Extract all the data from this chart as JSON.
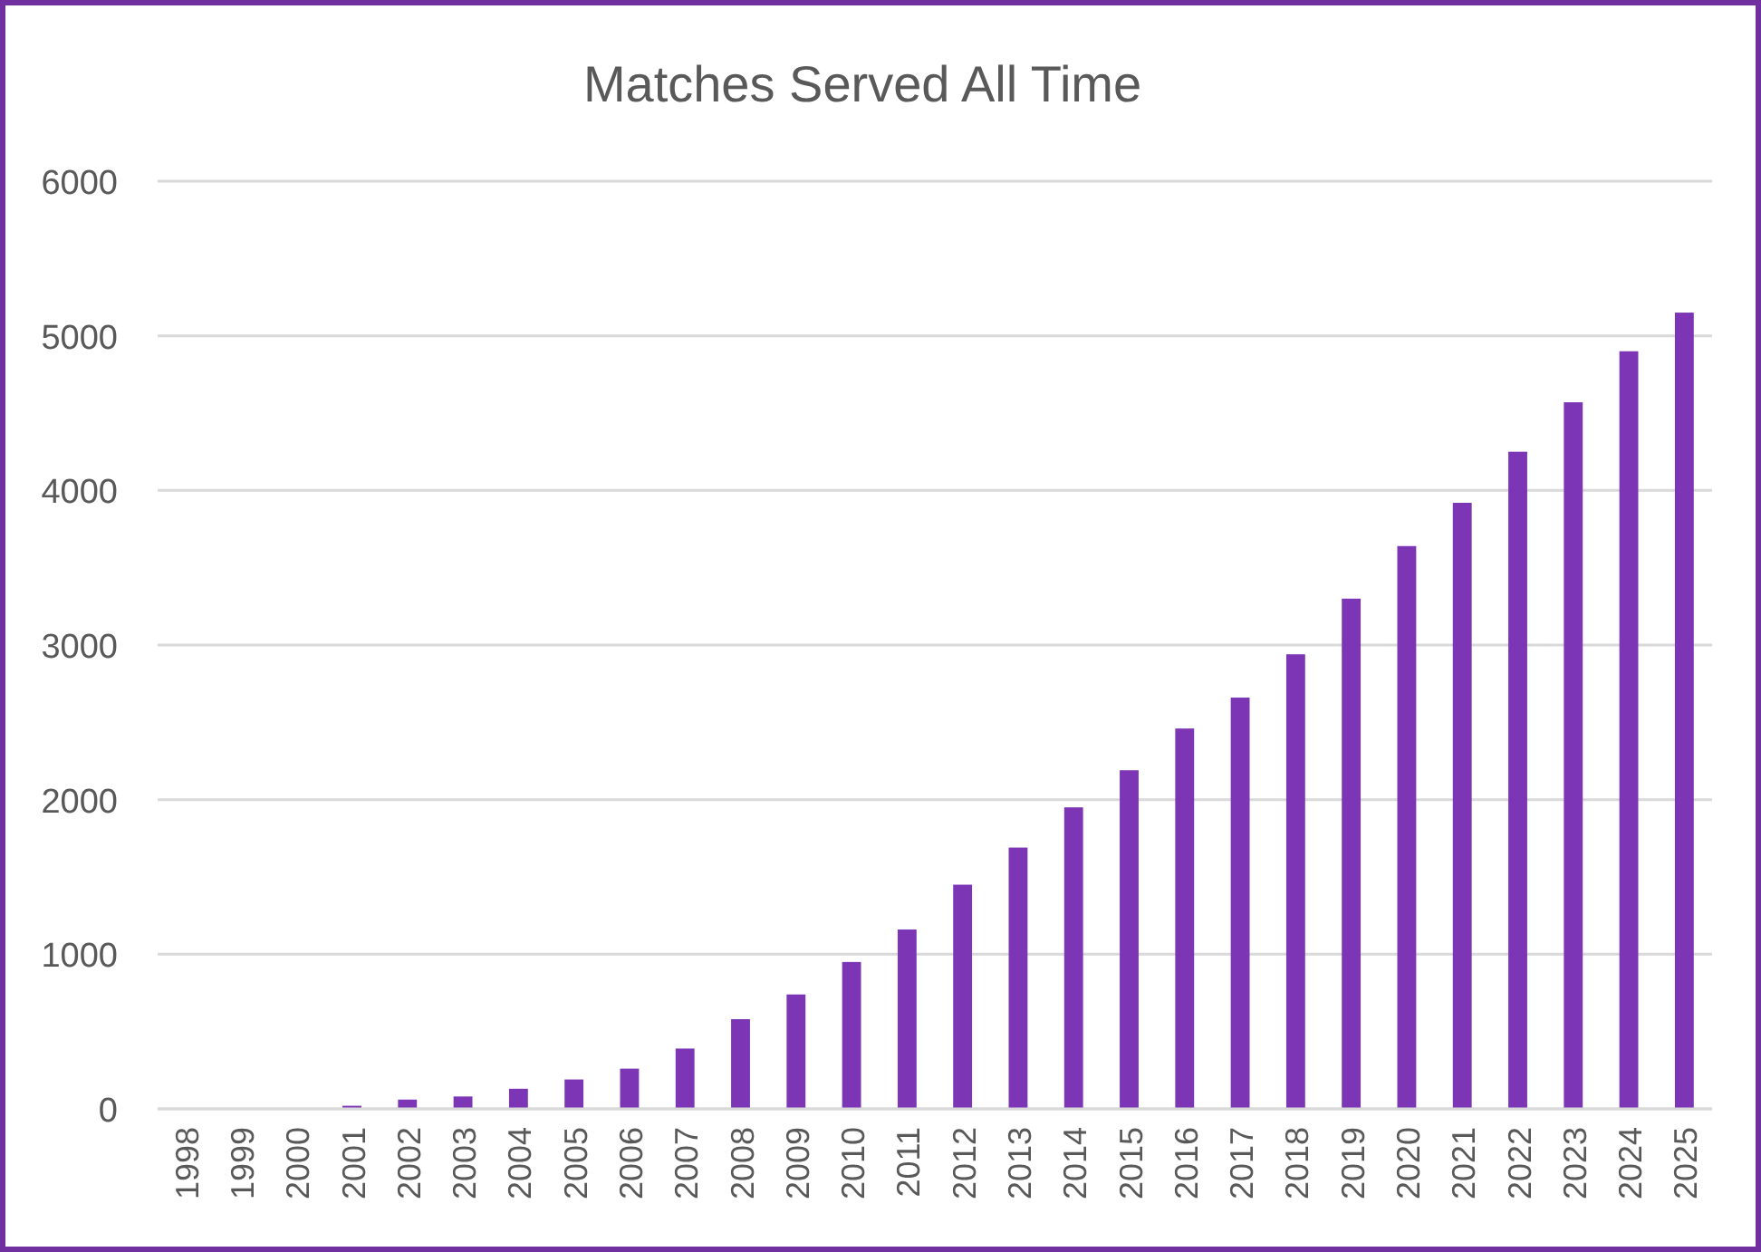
{
  "chart_data": {
    "type": "bar",
    "title": "Matches Served All Time",
    "categories": [
      "1998",
      "1999",
      "2000",
      "2001",
      "2002",
      "2003",
      "2004",
      "2005",
      "2006",
      "2007",
      "2008",
      "2009",
      "2010",
      "2011",
      "2012",
      "2013",
      "2014",
      "2015",
      "2016",
      "2017",
      "2018",
      "2019",
      "2020",
      "2021",
      "2022",
      "2023",
      "2024",
      "2025"
    ],
    "values": [
      0,
      0,
      0,
      20,
      60,
      80,
      130,
      190,
      260,
      390,
      580,
      740,
      950,
      1160,
      1450,
      1690,
      1950,
      2190,
      2460,
      2660,
      2940,
      3300,
      3640,
      3920,
      4250,
      4570,
      4900,
      5150
    ],
    "color": "#7b35b5",
    "ylim": [
      0,
      6000
    ],
    "yticks": [
      0,
      1000,
      2000,
      3000,
      4000,
      5000,
      6000
    ],
    "grid": "y"
  }
}
